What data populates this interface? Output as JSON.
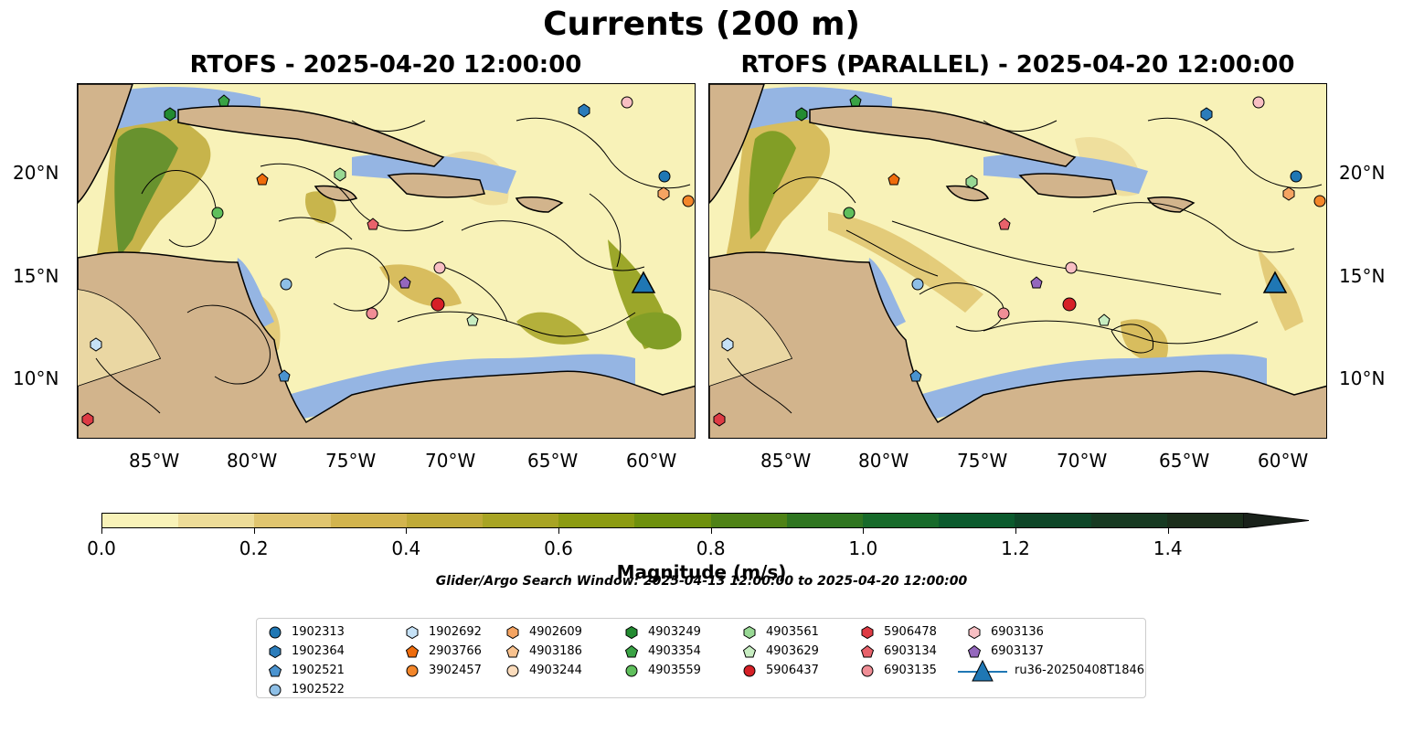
{
  "title": "Currents (200 m)",
  "panels": [
    {
      "title": "RTOFS - 2025-04-20 12:00:00"
    },
    {
      "title": "RTOFS (PARALLEL) - 2025-04-20 12:00:00"
    }
  ],
  "axes": {
    "lon_ticks": [
      "85°W",
      "80°W",
      "75°W",
      "70°W",
      "65°W",
      "60°W"
    ],
    "lat_ticks": [
      "20°N",
      "15°N",
      "10°N"
    ]
  },
  "colorbar": {
    "label": "Magnitude (m/s)",
    "range": [
      0,
      1.5
    ],
    "ticks": [
      "0.0",
      "0.2",
      "0.4",
      "0.6",
      "0.8",
      "1.0",
      "1.2",
      "1.4"
    ],
    "colors": [
      "#f8f2b8",
      "#eddc98",
      "#e0c56f",
      "#d2b44e",
      "#bfaa38",
      "#a8a424",
      "#8c9b12",
      "#6e900d",
      "#4f8216",
      "#2f7520",
      "#176a2a",
      "#0b5a2d",
      "#0e4628",
      "#173a22",
      "#1b2e1b",
      "#19211a"
    ],
    "extend": "max"
  },
  "search_window": "Glider/Argo Search Window: 2025-04-13 12:00:00 to 2025-04-20 12:00:00",
  "colors": {
    "land": "#d2b48c",
    "shallow": "#95b5e3",
    "glider": "#1f77b4"
  },
  "legend": [
    {
      "id": "1902313",
      "marker": "circle",
      "color": "#1f77b4"
    },
    {
      "id": "1902364",
      "marker": "hexagon",
      "color": "#2b7cba"
    },
    {
      "id": "1902521",
      "marker": "pentagon",
      "color": "#4a93cf"
    },
    {
      "id": "1902522",
      "marker": "circle",
      "color": "#8ebfe6"
    },
    {
      "id": "1902692",
      "marker": "hexagon",
      "color": "#c6e2f7"
    },
    {
      "id": "2903766",
      "marker": "pentagon",
      "color": "#ef6c0c"
    },
    {
      "id": "3902457",
      "marker": "circle",
      "color": "#f3862a"
    },
    {
      "id": "4902609",
      "marker": "hexagon",
      "color": "#f5a462"
    },
    {
      "id": "4903186",
      "marker": "pentagon",
      "color": "#f9c28e"
    },
    {
      "id": "4903244",
      "marker": "circle",
      "color": "#fbdcbc"
    },
    {
      "id": "4903249",
      "marker": "hexagon",
      "color": "#238b31"
    },
    {
      "id": "4903354",
      "marker": "pentagon",
      "color": "#3aa345"
    },
    {
      "id": "4903559",
      "marker": "circle",
      "color": "#5fbf5c"
    },
    {
      "id": "4903561",
      "marker": "hexagon",
      "color": "#98d894"
    },
    {
      "id": "4903629",
      "marker": "pentagon",
      "color": "#c7edc1"
    },
    {
      "id": "5906437",
      "marker": "circle",
      "color": "#d62027"
    },
    {
      "id": "5906478",
      "marker": "hexagon",
      "color": "#de3b44"
    },
    {
      "id": "6903134",
      "marker": "pentagon",
      "color": "#e8626b"
    },
    {
      "id": "6903135",
      "marker": "circle",
      "color": "#f08e96"
    },
    {
      "id": "6903136",
      "marker": "hexagon",
      "color": "#f8bfc3"
    },
    {
      "id": "6903137",
      "marker": "pentagon",
      "color": "#9467bd"
    },
    {
      "id": "ru36-20250408T1846",
      "marker": "triangle",
      "color": "#1f77b4"
    }
  ]
}
